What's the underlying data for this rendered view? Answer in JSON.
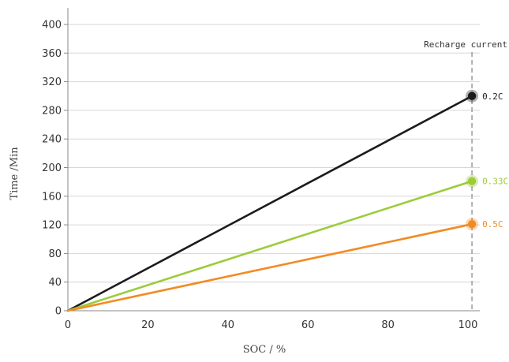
{
  "chart_data": {
    "type": "line",
    "title": "",
    "xlabel": "SOC / %",
    "ylabel": "Time /Min",
    "xlim": [
      0,
      102
    ],
    "ylim": [
      0,
      405
    ],
    "xticks": [
      0,
      20,
      40,
      60,
      80,
      100
    ],
    "yticks": [
      0,
      40,
      80,
      120,
      160,
      200,
      240,
      280,
      320,
      360,
      400
    ],
    "grid": "horizontal",
    "series": [
      {
        "name": "0.2C",
        "color": "#1c1c1c",
        "x": [
          0,
          101
        ],
        "y": [
          0,
          300
        ]
      },
      {
        "name": "0.33C",
        "color": "#9ccc3a",
        "x": [
          0,
          101
        ],
        "y": [
          0,
          181
        ]
      },
      {
        "name": "0.5C",
        "color": "#f28b23",
        "x": [
          0,
          101
        ],
        "y": [
          0,
          121
        ]
      }
    ],
    "annotations": [
      {
        "text": "Recharge current",
        "x": 101,
        "style": "dashed-vertical-line"
      }
    ]
  }
}
